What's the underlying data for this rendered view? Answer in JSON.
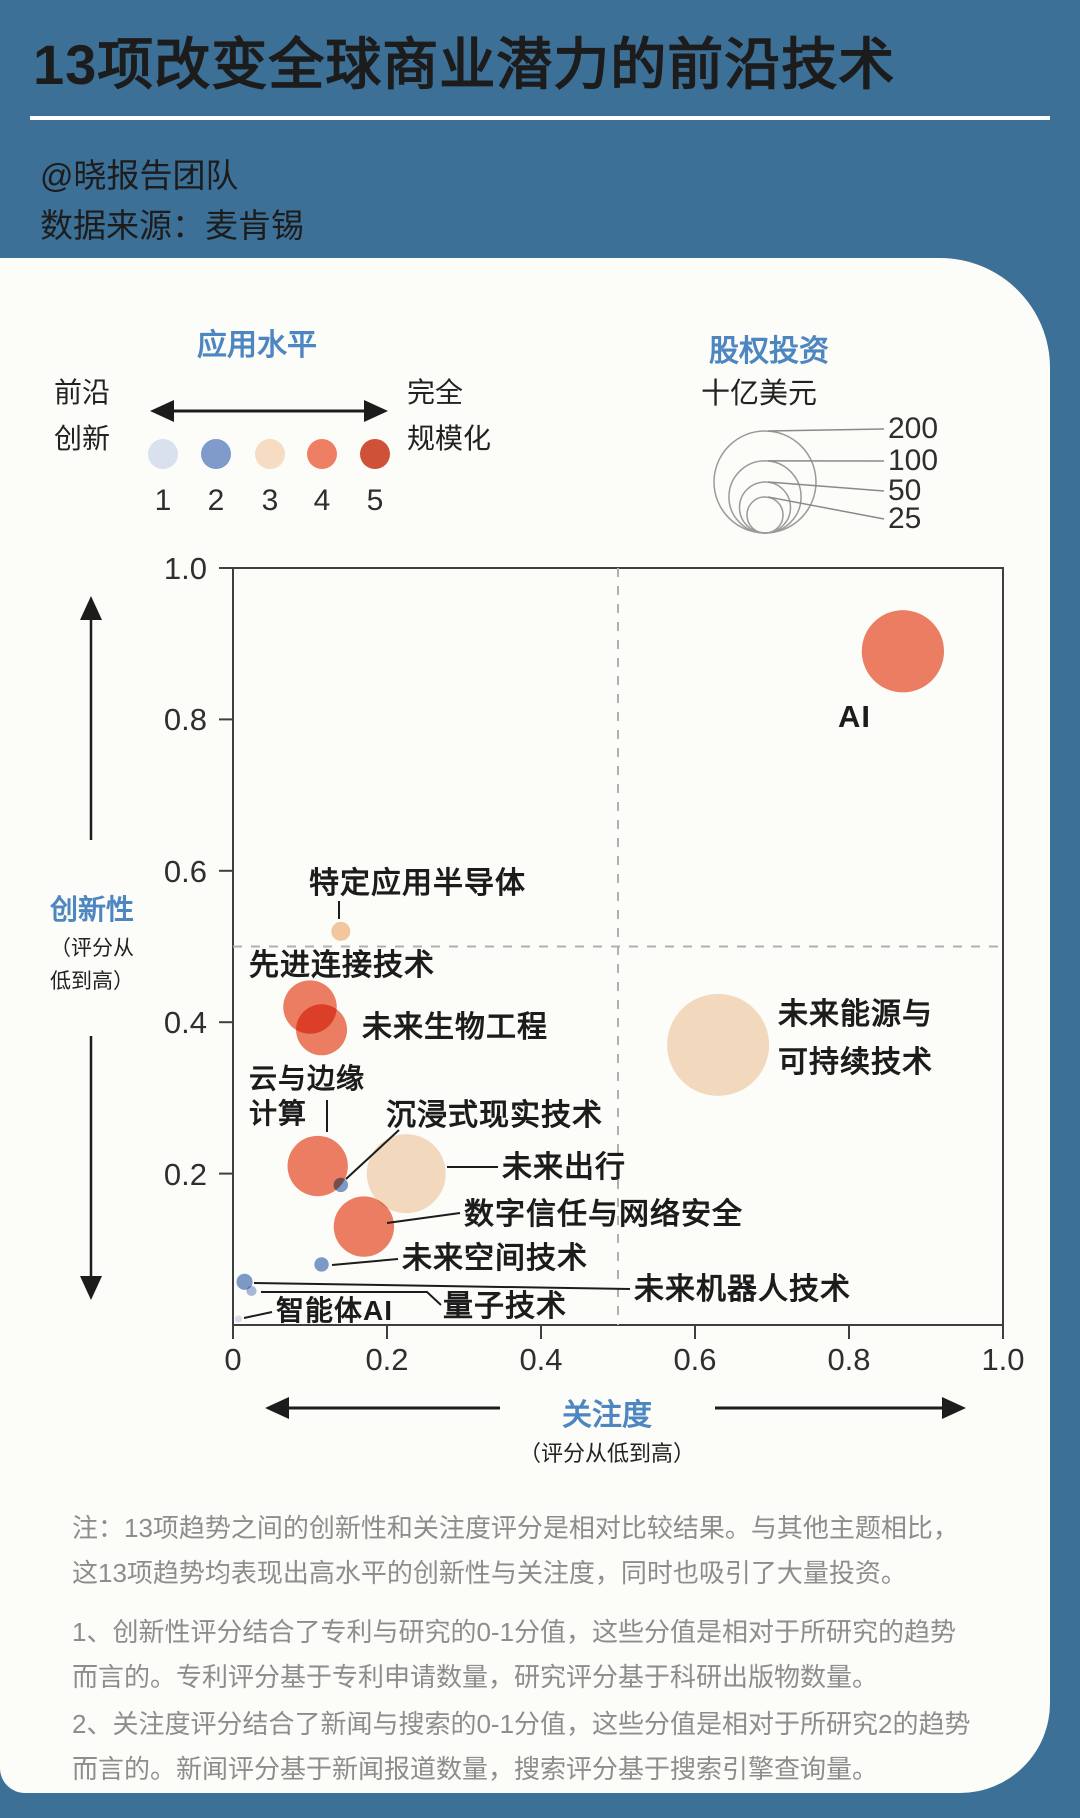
{
  "header": {
    "title": "13项改变全球商业潜力的前沿技术",
    "byline": "@晓报告团队",
    "source": "数据来源：麦肯锡"
  },
  "chart_data": {
    "type": "bubble",
    "title": "13项改变全球商业潜力的前沿技术",
    "xlabel": "关注度",
    "xlabel_sub": "（评分从低到高）",
    "ylabel": "创新性",
    "ylabel_sub": [
      "（评分从",
      "低到高）"
    ],
    "xlim": [
      0,
      1
    ],
    "ylim": [
      0,
      1
    ],
    "x_ticks": [
      {
        "v": 0,
        "label": "0"
      },
      {
        "v": 0.2,
        "label": "0.2"
      },
      {
        "v": 0.4,
        "label": "0.4"
      },
      {
        "v": 0.6,
        "label": "0.6"
      },
      {
        "v": 0.8,
        "label": "0.8"
      },
      {
        "v": 1.0,
        "label": "1.0"
      }
    ],
    "y_ticks": [
      {
        "v": 1.0,
        "label": "1.0"
      },
      {
        "v": 0.8,
        "label": "0.8"
      },
      {
        "v": 0.6,
        "label": "0.6"
      },
      {
        "v": 0.4,
        "label": "0.4"
      },
      {
        "v": 0.2,
        "label": "0.2"
      }
    ],
    "reference_lines": {
      "x": 0.5,
      "y": 0.5
    },
    "color_legend": {
      "title": "应用水平",
      "low_label": [
        "前沿",
        "创新"
      ],
      "high_label": [
        "完全",
        "规模化"
      ],
      "levels": [
        {
          "value": 1,
          "color": "#d9e0ee"
        },
        {
          "value": 2,
          "color": "#7e9bca"
        },
        {
          "value": 3,
          "color": "#f5dcc3"
        },
        {
          "value": 4,
          "color": "#ee7f64"
        },
        {
          "value": 5,
          "color": "#cf5138"
        }
      ]
    },
    "size_legend": {
      "title": "股权投资",
      "unit": "十亿美元",
      "values": [
        200,
        100,
        50,
        25
      ]
    },
    "points": [
      {
        "id": "ai",
        "name": "AI",
        "x": 0.87,
        "y": 0.89,
        "investment_billion": 130,
        "adoption_level": 4
      },
      {
        "id": "semiconductors",
        "name": "特定应用半导体",
        "x": 0.14,
        "y": 0.52,
        "investment_billion": 7,
        "adoption_level": 3,
        "color": "#f7c9a1"
      },
      {
        "id": "connectivity",
        "name": "先进连接技术",
        "x": 0.1,
        "y": 0.42,
        "investment_billion": 55,
        "adoption_level": 4
      },
      {
        "id": "bioengineering",
        "name": "未来生物工程",
        "x": 0.115,
        "y": 0.39,
        "investment_billion": 50,
        "adoption_level": 4
      },
      {
        "id": "energy",
        "name": "未来能源与可持续技术",
        "name_lines": [
          "未来能源与",
          "可持续技术"
        ],
        "x": 0.63,
        "y": 0.37,
        "investment_billion": 200,
        "adoption_level": 3
      },
      {
        "id": "cloud",
        "name": "云与边缘计算",
        "name_lines": [
          "云与边缘",
          "计算"
        ],
        "x": 0.11,
        "y": 0.21,
        "investment_billion": 70,
        "adoption_level": 4
      },
      {
        "id": "immersive",
        "name": "沉浸式现实技术",
        "x": 0.14,
        "y": 0.185,
        "investment_billion": 4,
        "adoption_level": 2
      },
      {
        "id": "mobility",
        "name": "未来出行",
        "x": 0.225,
        "y": 0.2,
        "investment_billion": 120,
        "adoption_level": 3
      },
      {
        "id": "digital_trust",
        "name": "数字信任与网络安全",
        "x": 0.17,
        "y": 0.13,
        "investment_billion": 70,
        "adoption_level": 4
      },
      {
        "id": "space",
        "name": "未来空间技术",
        "x": 0.115,
        "y": 0.08,
        "investment_billion": 4,
        "adoption_level": 2
      },
      {
        "id": "robotics",
        "name": "未来机器人技术",
        "x": 0.015,
        "y": 0.057,
        "investment_billion": 5,
        "adoption_level": 2
      },
      {
        "id": "quantum",
        "name": "量子技术",
        "x": 0.024,
        "y": 0.045,
        "investment_billion": 2,
        "adoption_level": 2,
        "color": "#aab9dc"
      },
      {
        "id": "agent_ai",
        "name": "智能体AI",
        "x": 0.007,
        "y": 0.008,
        "investment_billion": 1,
        "adoption_level": 1
      }
    ]
  },
  "notes": [
    [
      "注：13项趋势之间的创新性和关注度评分是相对比较结果。与其他主题相比，",
      "这13项趋势均表现出高水平的创新性与关注度，同时也吸引了大量投资。"
    ],
    [
      "1、创新性评分结合了专利与研究的0-1分值，这些分值是相对于所研究的趋势",
      "而言的。专利评分基于专利申请数量，研究评分基于科研出版物数量。"
    ],
    [
      "2、关注度评分结合了新闻与搜索的0-1分值，这些分值是相对于所研究2的趋势",
      "而言的。新闻评分基于新闻报道数量，搜索评分基于搜索引擎查询量。"
    ]
  ]
}
